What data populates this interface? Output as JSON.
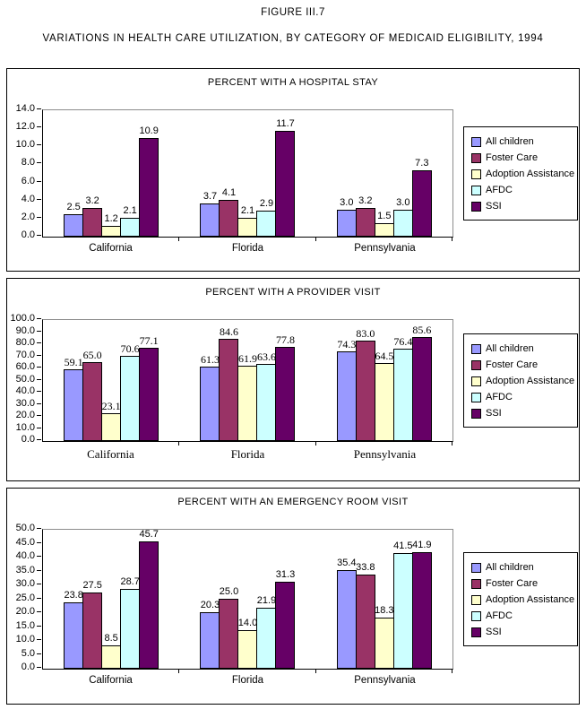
{
  "page": {
    "figure_label": "FIGURE III.7",
    "title": "VARIATIONS IN HEALTH CARE UTILIZATION, BY CATEGORY OF MEDICAID ELIGIBILITY, 1994"
  },
  "colors": {
    "all_children": "#9999FF",
    "foster_care": "#993366",
    "adoption_assistance": "#FFFFCC",
    "afdc": "#CCFFFF",
    "ssi": "#660066",
    "axis": "#000000",
    "plot_border_gray": "#8C8C8C"
  },
  "legend_items": [
    "All children",
    "Foster Care",
    "Adoption Assistance",
    "AFDC",
    "SSI"
  ],
  "chart_data": [
    {
      "type": "bar",
      "title": "PERCENT WITH A HOSPITAL STAY",
      "categories": [
        "California",
        "Florida",
        "Pennsylvania"
      ],
      "series": [
        {
          "name": "All children",
          "color": "#9999FF",
          "values": [
            2.5,
            3.7,
            3.0
          ]
        },
        {
          "name": "Foster Care",
          "color": "#993366",
          "values": [
            3.2,
            4.1,
            3.2
          ]
        },
        {
          "name": "Adoption Assistance",
          "color": "#FFFFCC",
          "values": [
            1.2,
            2.1,
            1.5
          ]
        },
        {
          "name": "AFDC",
          "color": "#CCFFFF",
          "values": [
            2.1,
            2.9,
            3.0
          ]
        },
        {
          "name": "SSI",
          "color": "#660066",
          "values": [
            10.9,
            11.7,
            7.3
          ]
        }
      ],
      "ylim": [
        0,
        14.0
      ],
      "ytick_step": 2.0,
      "grid": false,
      "data_labels": true,
      "legend_position": "right",
      "label_font": "sans"
    },
    {
      "type": "bar",
      "title": "PERCENT WITH A PROVIDER VISIT",
      "categories": [
        "California",
        "Florida",
        "Pennsylvania"
      ],
      "series": [
        {
          "name": "All children",
          "color": "#9999FF",
          "values": [
            59.1,
            61.3,
            74.3
          ]
        },
        {
          "name": "Foster Care",
          "color": "#993366",
          "values": [
            65.0,
            84.6,
            83.0
          ]
        },
        {
          "name": "Adoption Assistance",
          "color": "#FFFFCC",
          "values": [
            23.1,
            61.9,
            64.5
          ]
        },
        {
          "name": "AFDC",
          "color": "#CCFFFF",
          "values": [
            70.6,
            63.6,
            76.4
          ]
        },
        {
          "name": "SSI",
          "color": "#660066",
          "values": [
            77.1,
            77.8,
            85.6
          ]
        }
      ],
      "ylim": [
        0,
        100.0
      ],
      "ytick_step": 10.0,
      "grid": false,
      "data_labels": true,
      "legend_position": "right",
      "label_font": "serif"
    },
    {
      "type": "bar",
      "title": "PERCENT WITH AN EMERGENCY ROOM VISIT",
      "categories": [
        "California",
        "Florida",
        "Pennsylvania"
      ],
      "series": [
        {
          "name": "All children",
          "color": "#9999FF",
          "values": [
            23.8,
            20.3,
            35.4
          ]
        },
        {
          "name": "Foster Care",
          "color": "#993366",
          "values": [
            27.5,
            25.0,
            33.8
          ]
        },
        {
          "name": "Adoption Assistance",
          "color": "#FFFFCC",
          "values": [
            8.5,
            14.0,
            18.3
          ]
        },
        {
          "name": "AFDC",
          "color": "#CCFFFF",
          "values": [
            28.7,
            21.9,
            41.5
          ]
        },
        {
          "name": "SSI",
          "color": "#660066",
          "values": [
            45.7,
            31.3,
            41.9
          ]
        }
      ],
      "ylim": [
        0,
        50.0
      ],
      "ytick_step": 5.0,
      "grid": false,
      "data_labels": true,
      "legend_position": "right",
      "label_font": "sans"
    }
  ]
}
